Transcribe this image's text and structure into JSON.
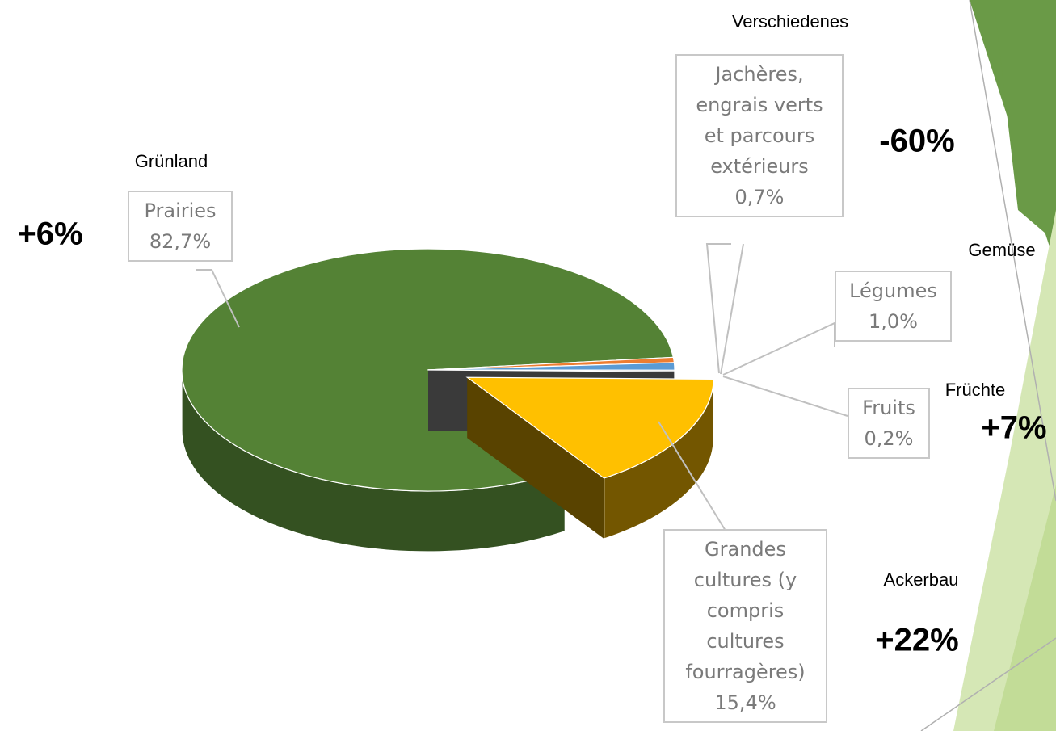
{
  "chart_data": {
    "type": "pie",
    "categories": [
      "Jachères, engrais verts et parcours extérieurs",
      "Légumes",
      "Fruits",
      "Grandes cultures (y compris cultures fourragères)",
      "Prairies"
    ],
    "values": [
      0.7,
      1.0,
      0.2,
      15.4,
      82.7
    ],
    "value_labels": [
      "0,7%",
      "1,0%",
      "0,2%",
      "15,4%",
      "82,7%"
    ],
    "colors": [
      "#ed7d31",
      "#5b9bd5",
      "#a5a5a5",
      "#ffc000",
      "#548235"
    ],
    "annotations": [
      "Verschiedenes",
      "-60%",
      "Gemüse",
      "Früchte",
      "+7%",
      "Ackerbau",
      "+22%",
      "Grünland",
      "+6%"
    ]
  }
}
